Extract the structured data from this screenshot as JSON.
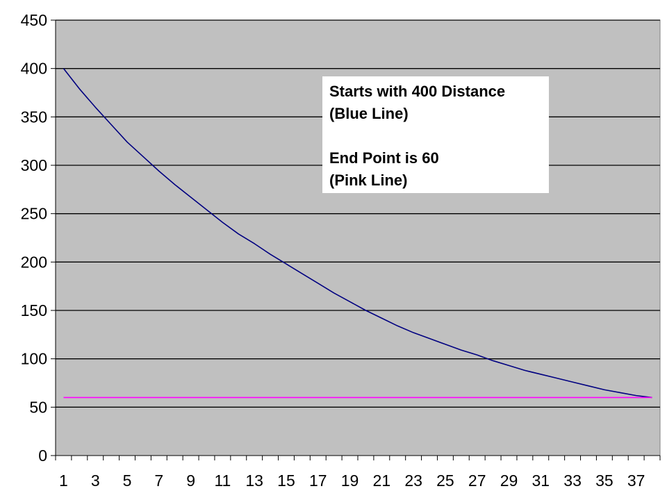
{
  "chart_data": {
    "type": "line",
    "title": "",
    "xlabel": "",
    "ylabel": "",
    "ylim": [
      0,
      450
    ],
    "yticks": [
      0,
      50,
      100,
      150,
      200,
      250,
      300,
      350,
      400,
      450
    ],
    "x": [
      1,
      2,
      3,
      4,
      5,
      6,
      7,
      8,
      9,
      10,
      11,
      12,
      13,
      14,
      15,
      16,
      17,
      18,
      19,
      20,
      21,
      22,
      23,
      24,
      25,
      26,
      27,
      28,
      29,
      30,
      31,
      32,
      33,
      34,
      35,
      36,
      37,
      38
    ],
    "xtick_labels": [
      "1",
      "3",
      "5",
      "7",
      "9",
      "11",
      "13",
      "15",
      "17",
      "19",
      "21",
      "23",
      "25",
      "27",
      "29",
      "31",
      "33",
      "35",
      "37"
    ],
    "grid": "horizontal",
    "background_color": "#c0c0c0",
    "series": [
      {
        "color": "#000080",
        "values": [
          400,
          379,
          360,
          342,
          324,
          309,
          294,
          280,
          267,
          254,
          241,
          229,
          219,
          208,
          198,
          188,
          178,
          168,
          159,
          150,
          142,
          134,
          127,
          121,
          115,
          109,
          104,
          98,
          93,
          88,
          84,
          80,
          76,
          72,
          68,
          65,
          62,
          60
        ]
      },
      {
        "color": "#ff00ff",
        "values": [
          60,
          60,
          60,
          60,
          60,
          60,
          60,
          60,
          60,
          60,
          60,
          60,
          60,
          60,
          60,
          60,
          60,
          60,
          60,
          60,
          60,
          60,
          60,
          60,
          60,
          60,
          60,
          60,
          60,
          60,
          60,
          60,
          60,
          60,
          60,
          60,
          60,
          60
        ]
      }
    ],
    "annotation": {
      "lines": [
        "Starts with 400 Distance",
        "(Blue Line)",
        "",
        "End Point is 60",
        "(Pink Line)"
      ]
    }
  }
}
